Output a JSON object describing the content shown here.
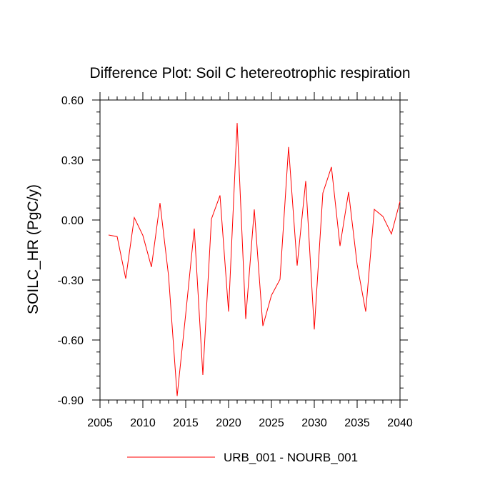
{
  "chart_data": {
    "type": "line",
    "title": "Difference Plot: Soil C hetereotrophic respiration",
    "ylabel": "SOILC_HR  (PgC/y)",
    "xlabel": "",
    "xlim": [
      2005,
      2040
    ],
    "ylim": [
      -0.9,
      0.6
    ],
    "xticks": [
      2005,
      2010,
      2015,
      2020,
      2025,
      2030,
      2035,
      2040
    ],
    "xtick_labels": [
      "2005",
      "2010",
      "2015",
      "2020",
      "2025",
      "2030",
      "2035",
      "2040"
    ],
    "yticks": [
      0.6,
      0.3,
      0.0,
      -0.3,
      -0.6,
      -0.9
    ],
    "ytick_labels": [
      "0.60",
      "0.30",
      "0.00",
      "-0.30",
      "-0.60",
      "-0.90"
    ],
    "grid": false,
    "legend_position": "bottom-center",
    "series": [
      {
        "name": "URB_001 - NOURB_001",
        "color": "#ff0000",
        "x": [
          2006,
          2007,
          2008,
          2009,
          2010,
          2011,
          2012,
          2013,
          2014,
          2015,
          2016,
          2017,
          2018,
          2019,
          2020,
          2021,
          2022,
          2023,
          2024,
          2025,
          2026,
          2027,
          2028,
          2029,
          2030,
          2031,
          2032,
          2033,
          2034,
          2035,
          2036,
          2037,
          2038,
          2039,
          2040
        ],
        "y": [
          -0.075,
          -0.083,
          -0.293,
          0.012,
          -0.077,
          -0.235,
          0.085,
          -0.28,
          -0.88,
          -0.47,
          -0.043,
          -0.775,
          0.005,
          0.123,
          -0.458,
          0.485,
          -0.495,
          0.053,
          -0.53,
          -0.377,
          -0.297,
          0.365,
          -0.228,
          0.195,
          -0.547,
          0.135,
          0.265,
          -0.13,
          0.14,
          -0.223,
          -0.458,
          0.053,
          0.018,
          -0.07,
          0.093
        ]
      }
    ]
  }
}
